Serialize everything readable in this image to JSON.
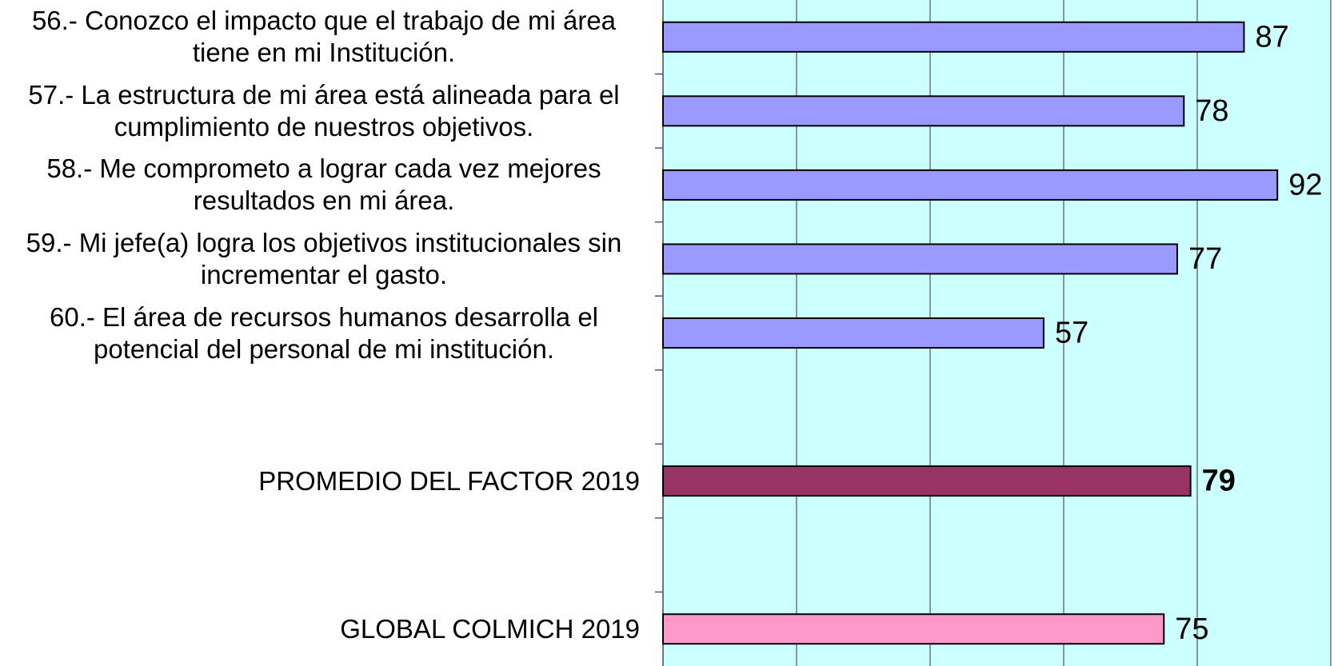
{
  "chart_data": {
    "type": "bar",
    "orientation": "horizontal",
    "categories": [
      "56.- Conozco el impacto que el trabajo de mi área tiene en mi Institución.",
      "57.- La estructura de mi área está alineada para el cumplimiento de nuestros objetivos.",
      "58.- Me comprometo a lograr cada vez mejores resultados en mi área.",
      "59.- Mi jefe(a) logra los objetivos institucionales sin incrementar el gasto.",
      "60.- El área de recursos humanos desarrolla el potencial del personal de mi institución.",
      null,
      "PROMEDIO DEL FACTOR   2019",
      null,
      "GLOBAL COLMICH  2019"
    ],
    "values": [
      87,
      78,
      92,
      77,
      57,
      null,
      79,
      null,
      75
    ],
    "colors": [
      "#9999ff",
      "#9999ff",
      "#9999ff",
      "#9999ff",
      "#9999ff",
      null,
      "#993366",
      null,
      "#ff99cc"
    ],
    "label_bold": [
      false,
      false,
      false,
      false,
      false,
      false,
      true,
      false,
      false
    ],
    "xlim": [
      0,
      100
    ],
    "xticks": [
      0,
      20,
      40,
      60,
      80,
      100
    ],
    "grid": true,
    "plot_background": "#ccffff"
  }
}
